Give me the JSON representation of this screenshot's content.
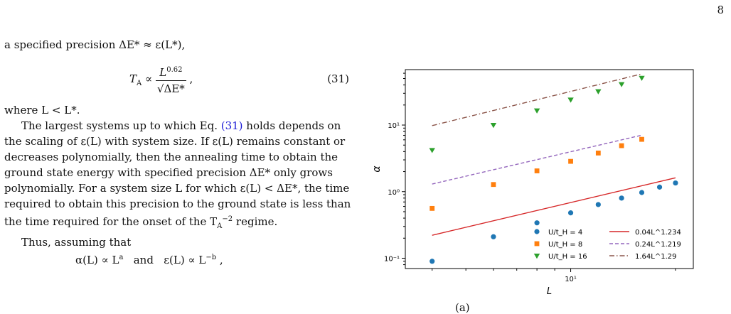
{
  "page": {
    "number": "8"
  },
  "text": {
    "intro": "a specified precision ΔE* ≈ ε(L*),",
    "eq31": {
      "lhs": "T",
      "lhs_sub": "A",
      "prop": " ∝ ",
      "num": "L",
      "num_sup": "0.62",
      "den": "√ΔE*",
      "tail": " ,",
      "label": "(31)"
    },
    "where": "where L < L*.",
    "para1_a": "The largest systems up to which Eq. ",
    "para1_ref": "(31)",
    "para1_b": " holds depends on the scaling of ε(L) with system size. If ε(L) remains constant or decreases polynomially, then the annealing time to obtain the ground state energy with specified precision ΔE* only grows polynomially. For a system size L for which ε(L) < ΔE*, the time required to obtain this precision to the ground state is less than the time required for the onset of the T",
    "para1_A": "A",
    "para1_exp": "−2",
    "para1_c": " regime.",
    "para2": "Thus, assuming that",
    "eq_alpha": "α(L) ∝ L",
    "eq_alpha_sup": "a",
    "eq_and": "and",
    "eq_eps": "ε(L) ∝ L",
    "eq_eps_sup": "−b",
    "eq_tail": " ,"
  },
  "caption_fragment": "(a)",
  "chart_data": {
    "type": "scatter",
    "xscale": "log",
    "yscale": "log",
    "xlabel": "L",
    "ylabel": "α",
    "xlim": [
      3.35,
      22.5
    ],
    "ylim": [
      0.07,
      68
    ],
    "xticks": [
      {
        "value": 10,
        "label": "10¹"
      }
    ],
    "yticks": [
      {
        "value": 0.1,
        "label": "10⁻¹"
      },
      {
        "value": 1,
        "label": "10⁰"
      },
      {
        "value": 10,
        "label": "10¹"
      }
    ],
    "legend_position": "lower-right",
    "series": [
      {
        "name": "U/t_H = 4",
        "marker": "circle",
        "color": "#1f77b4",
        "x": [
          4,
          6,
          8,
          10,
          12,
          14,
          16,
          18,
          20
        ],
        "y": [
          0.09,
          0.21,
          0.34,
          0.48,
          0.64,
          0.8,
          0.97,
          1.17,
          1.35
        ]
      },
      {
        "name": "U/t_H = 8",
        "marker": "square",
        "color": "#ff7f0e",
        "x": [
          4,
          6,
          8,
          10,
          12,
          14,
          16
        ],
        "y": [
          0.56,
          1.28,
          2.05,
          2.85,
          3.8,
          4.9,
          6.1
        ]
      },
      {
        "name": "U/t_H = 16",
        "marker": "triangle-down",
        "color": "#2ca02c",
        "x": [
          4,
          6,
          8,
          10,
          12,
          14,
          16
        ],
        "y": [
          4.2,
          10.0,
          16.5,
          24.0,
          32.0,
          41.0,
          51.0
        ]
      }
    ],
    "fits": [
      {
        "name": "0.04L^1.234",
        "coef": 0.04,
        "exp": 1.234,
        "style": "solid",
        "color": "#d62728",
        "xrange": [
          4,
          20
        ]
      },
      {
        "name": "0.24L^1.219",
        "coef": 0.24,
        "exp": 1.219,
        "style": "dashed",
        "color": "#9467bd",
        "xrange": [
          4,
          16
        ]
      },
      {
        "name": "1.64L^1.29",
        "coef": 1.64,
        "exp": 1.29,
        "style": "dashdot",
        "color": "#8c564b",
        "xrange": [
          4,
          16
        ]
      }
    ]
  }
}
